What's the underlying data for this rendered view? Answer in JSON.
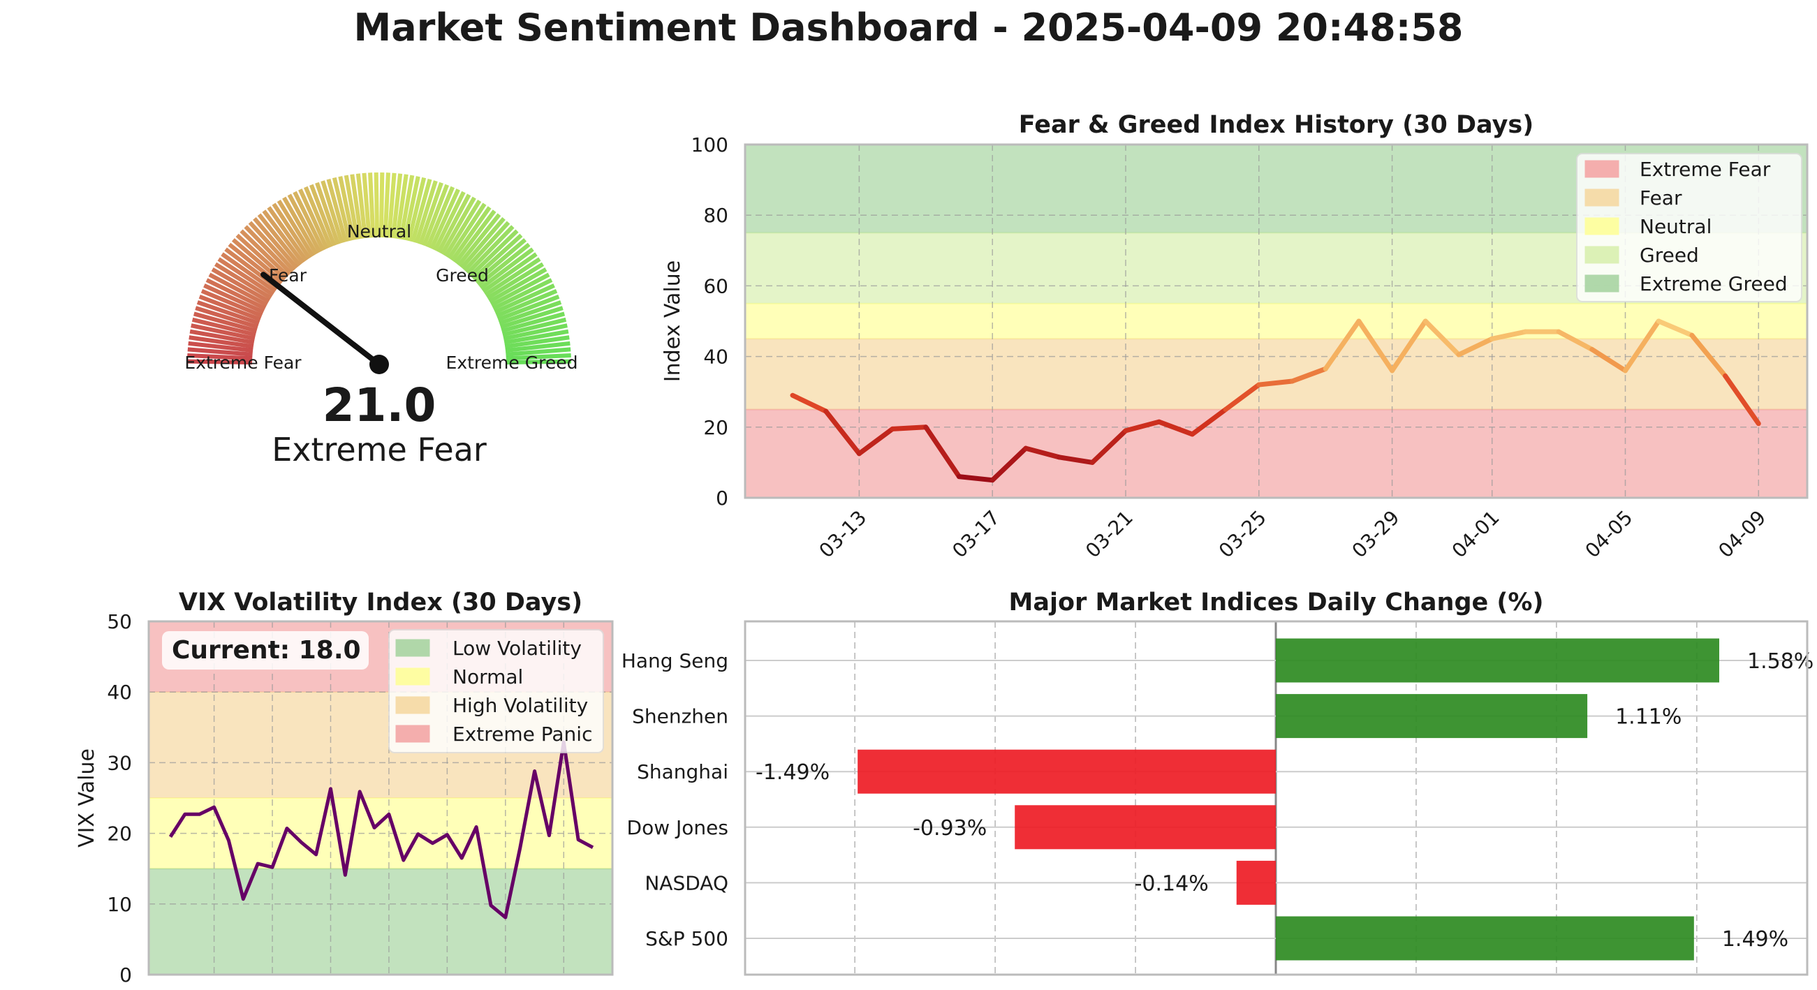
{
  "suptitle": "Market Sentiment Dashboard - 2025-04-09 20:48:58",
  "colors": {
    "extreme_fear": "#f4a6a6",
    "fear": "#f6d9a3",
    "neutral": "#ffff9a",
    "greed": "#d9f0b0",
    "extreme_greed": "#a8d5a2",
    "bar_positive": "#2e8b22",
    "bar_negative": "#ee1c25",
    "vix_line": "#660066"
  },
  "chart_data": [
    {
      "type": "gauge",
      "value": 21.0,
      "value_text": "21.0",
      "label": "Extreme Fear",
      "range": [
        0,
        100
      ],
      "zone_labels": [
        "Extreme Fear",
        "Fear",
        "Neutral",
        "Greed",
        "Extreme Greed"
      ]
    },
    {
      "type": "line",
      "title": "Fear & Greed Index History (30 Days)",
      "xlabel": "",
      "ylabel": "Index Value",
      "ylim": [
        0,
        100
      ],
      "yticks": [
        0,
        20,
        40,
        60,
        80,
        100
      ],
      "xtick_labels": [
        "03-13",
        "03-17",
        "03-21",
        "03-25",
        "03-29",
        "04-01",
        "04-05",
        "04-09"
      ],
      "x": [
        "03-11",
        "03-12",
        "03-13",
        "03-14",
        "03-15",
        "03-16",
        "03-17",
        "03-18",
        "03-19",
        "03-20",
        "03-21",
        "03-22",
        "03-23",
        "03-24",
        "03-25",
        "03-26",
        "03-27",
        "03-28",
        "03-29",
        "03-30",
        "03-31",
        "04-01",
        "04-02",
        "04-03",
        "04-04",
        "04-05",
        "04-06",
        "04-07",
        "04-08",
        "04-09"
      ],
      "values": [
        29,
        24.5,
        12.5,
        19.5,
        20,
        6,
        5,
        14,
        11.5,
        10,
        19,
        21.5,
        18,
        25,
        32,
        33,
        36.5,
        50,
        36,
        50,
        40.5,
        45,
        47,
        47,
        42,
        36,
        50,
        46,
        34.5,
        21
      ],
      "bands": [
        {
          "name": "Extreme Fear",
          "range": [
            0,
            25
          ]
        },
        {
          "name": "Fear",
          "range": [
            25,
            45
          ]
        },
        {
          "name": "Neutral",
          "range": [
            45,
            55
          ]
        },
        {
          "name": "Greed",
          "range": [
            55,
            75
          ]
        },
        {
          "name": "Extreme Greed",
          "range": [
            75,
            100
          ]
        }
      ],
      "grid": true,
      "legend_position": "top-right"
    },
    {
      "type": "line",
      "title": "VIX Volatility Index (30 Days)",
      "xlabel": "",
      "ylabel": "VIX Value",
      "ylim": [
        0,
        50
      ],
      "yticks": [
        0,
        10,
        20,
        30,
        40,
        50
      ],
      "values": [
        19.5,
        22.7,
        22.7,
        23.7,
        19,
        10.7,
        15.7,
        15.2,
        20.7,
        18.7,
        17,
        26.3,
        14.1,
        25.9,
        20.8,
        22.7,
        16.2,
        19.9,
        18.6,
        19.8,
        16.5,
        20.9,
        9.8,
        8.1,
        17.9,
        28.8,
        19.7,
        32.9,
        19.1,
        18.0
      ],
      "annotation": "Current: 18.0",
      "bands": [
        {
          "name": "Low Volatility",
          "range": [
            0,
            15
          ]
        },
        {
          "name": "Normal",
          "range": [
            15,
            25
          ]
        },
        {
          "name": "High Volatility",
          "range": [
            25,
            40
          ]
        },
        {
          "name": "Extreme Panic",
          "range": [
            40,
            50
          ]
        }
      ],
      "grid": true,
      "legend_position": "top-right"
    },
    {
      "type": "bar",
      "orientation": "horizontal",
      "title": "Major Market Indices Daily Change (%)",
      "categories": [
        "Hang Seng",
        "Shenzhen",
        "Shanghai",
        "Dow Jones",
        "NASDAQ",
        "S&P 500"
      ],
      "values": [
        1.58,
        1.11,
        -1.49,
        -0.93,
        -0.14,
        1.49
      ],
      "value_labels": [
        "1.58%",
        "1.11%",
        "-1.49%",
        "-0.93%",
        "-0.14%",
        "1.49%"
      ],
      "xlim": [
        -1.9,
        1.9
      ],
      "grid": true
    }
  ]
}
